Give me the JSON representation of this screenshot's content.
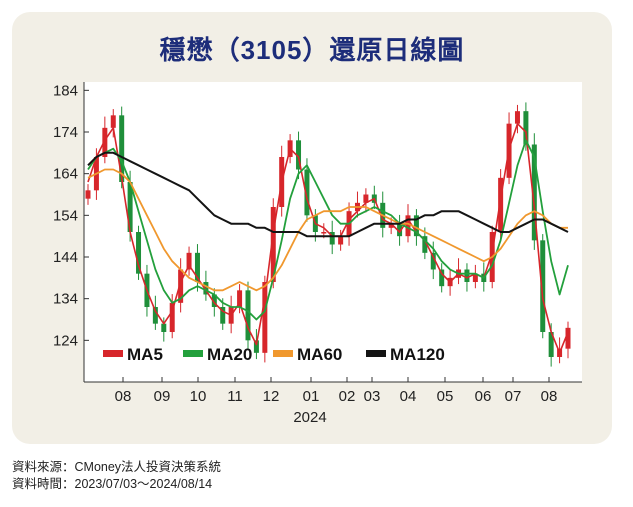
{
  "title": "穩懋（3105）還原日線圖",
  "footer": {
    "source": "資料來源：CMoney法人投資決策系統",
    "period": "資料時間：2023/07/03～2024/08/14"
  },
  "colors": {
    "card_bg": "#f2efe6",
    "title": "#1d2d7a",
    "up_candle": "#d7262b",
    "down_candle": "#1f8f3a",
    "ma5": "#d7262b",
    "ma20": "#23a03c",
    "ma60": "#f0982e",
    "ma120": "#141414"
  },
  "chart_data": {
    "type": "line",
    "subtype": "candlestick_with_moving_averages",
    "title": "穩懋（3105）還原日線圖",
    "xlabel": "",
    "ylabel": "",
    "ylim": [
      114,
      186
    ],
    "yticks": [
      124,
      134,
      144,
      154,
      164,
      174,
      184
    ],
    "grid": false,
    "legend_position": "bottom-left",
    "x_ticks": [
      "08",
      "09",
      "10",
      "11",
      "12",
      "01",
      "02",
      "03",
      "04",
      "05",
      "06",
      "07",
      "08"
    ],
    "x_year_label": "2024",
    "series": [
      {
        "name": "MA5",
        "values": [
          162,
          168,
          172,
          175,
          163,
          150,
          142,
          136,
          131,
          128,
          131,
          138,
          142,
          139,
          136,
          133,
          131,
          130,
          133,
          127,
          123,
          134,
          150,
          162,
          170,
          168,
          158,
          152,
          151,
          149,
          149,
          153,
          155,
          157,
          158,
          153,
          152,
          150,
          153,
          150,
          148,
          144,
          140,
          138,
          140,
          139,
          140,
          139,
          145,
          158,
          170,
          176,
          174,
          156,
          134,
          126,
          121,
          126
        ]
      },
      {
        "name": "MA20",
        "values": [
          165,
          168,
          169,
          170,
          167,
          162,
          155,
          148,
          141,
          136,
          133,
          134,
          136,
          137,
          136,
          135,
          133,
          132,
          132,
          131,
          129,
          131,
          139,
          148,
          158,
          164,
          166,
          162,
          158,
          154,
          152,
          152,
          154,
          155,
          156,
          155,
          154,
          152,
          151,
          150,
          148,
          146,
          143,
          141,
          140,
          140,
          140,
          139,
          142,
          148,
          157,
          166,
          172,
          168,
          155,
          143,
          135,
          142
        ]
      },
      {
        "name": "MA60",
        "values": [
          163,
          164,
          165,
          165,
          164,
          162,
          158,
          154,
          150,
          146,
          143,
          141,
          139,
          138,
          137,
          136,
          136,
          137,
          138,
          137,
          136,
          137,
          139,
          142,
          146,
          150,
          153,
          154,
          155,
          155,
          155,
          156,
          156,
          156,
          155,
          154,
          153,
          152,
          152,
          151,
          150,
          149,
          148,
          147,
          146,
          145,
          144,
          143,
          144,
          146,
          149,
          152,
          154,
          155,
          154,
          152,
          151,
          151
        ]
      },
      {
        "name": "MA120",
        "values": [
          166,
          168,
          169,
          169,
          168,
          167,
          166,
          165,
          164,
          163,
          162,
          161,
          160,
          158,
          156,
          154,
          153,
          152,
          152,
          152,
          151,
          151,
          150,
          150,
          150,
          150,
          149,
          149,
          149,
          149,
          149,
          149,
          150,
          151,
          152,
          152,
          152,
          152,
          153,
          153,
          154,
          154,
          155,
          155,
          155,
          154,
          153,
          152,
          151,
          150,
          150,
          151,
          152,
          153,
          153,
          152,
          151,
          150
        ]
      }
    ],
    "candles_close": [
      160,
      168,
      175,
      178,
      162,
      150,
      140,
      132,
      128,
      126,
      133,
      141,
      145,
      138,
      135,
      132,
      128,
      132,
      136,
      124,
      121,
      138,
      156,
      168,
      172,
      165,
      154,
      150,
      150,
      147,
      149,
      155,
      157,
      159,
      157,
      151,
      152,
      149,
      154,
      149,
      145,
      141,
      137,
      139,
      141,
      138,
      140,
      138,
      150,
      163,
      176,
      179,
      171,
      148,
      126,
      120,
      122,
      127
    ]
  }
}
